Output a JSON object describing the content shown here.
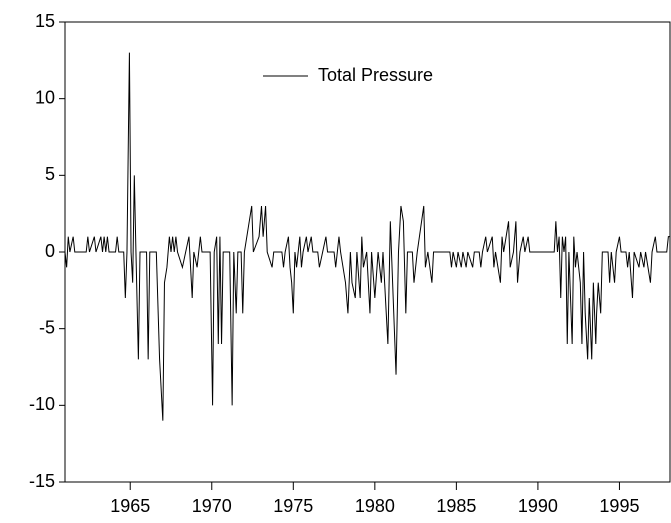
{
  "chart_data": {
    "type": "line",
    "x": [
      1961.0,
      1961.1,
      1961.2,
      1961.3,
      1961.5,
      1961.6,
      1962.3,
      1962.4,
      1962.5,
      1962.8,
      1962.9,
      1963.2,
      1963.3,
      1963.4,
      1963.5,
      1963.6,
      1963.7,
      1964.1,
      1964.2,
      1964.3,
      1964.6,
      1964.7,
      1964.8,
      1964.95,
      1965.05,
      1965.15,
      1965.25,
      1965.35,
      1965.5,
      1965.6,
      1966.0,
      1966.1,
      1966.2,
      1966.6,
      1966.8,
      1967.0,
      1967.1,
      1967.25,
      1967.4,
      1967.5,
      1967.6,
      1967.7,
      1967.8,
      1967.9,
      1968.2,
      1968.4,
      1968.6,
      1968.8,
      1968.9,
      1969.1,
      1969.3,
      1969.4,
      1969.9,
      1970.05,
      1970.15,
      1970.3,
      1970.4,
      1970.5,
      1970.6,
      1970.7,
      1971.1,
      1971.25,
      1971.35,
      1971.5,
      1971.6,
      1971.8,
      1971.9,
      1972.0,
      1972.3,
      1972.45,
      1972.55,
      1972.9,
      1973.05,
      1973.15,
      1973.3,
      1973.4,
      1973.7,
      1973.8,
      1974.3,
      1974.4,
      1974.5,
      1974.7,
      1974.8,
      1974.9,
      1975.0,
      1975.1,
      1975.2,
      1975.4,
      1975.5,
      1975.6,
      1975.8,
      1975.9,
      1976.1,
      1976.2,
      1976.5,
      1976.6,
      1976.8,
      1977.0,
      1977.1,
      1977.5,
      1977.6,
      1977.8,
      1977.9,
      1978.2,
      1978.35,
      1978.5,
      1978.6,
      1978.8,
      1978.9,
      1979.1,
      1979.2,
      1979.3,
      1979.5,
      1979.7,
      1979.8,
      1980.0,
      1980.2,
      1980.4,
      1980.5,
      1980.8,
      1980.95,
      1981.3,
      1981.45,
      1981.6,
      1981.75,
      1981.9,
      1982.0,
      1982.3,
      1982.4,
      1982.6,
      1983.0,
      1983.1,
      1983.25,
      1983.5,
      1983.6,
      1984.6,
      1984.7,
      1984.8,
      1985.0,
      1985.1,
      1985.3,
      1985.4,
      1985.6,
      1985.7,
      1986.0,
      1986.1,
      1986.4,
      1986.5,
      1986.6,
      1986.8,
      1986.9,
      1987.2,
      1987.3,
      1987.4,
      1987.7,
      1987.8,
      1987.9,
      1988.2,
      1988.3,
      1988.5,
      1988.65,
      1988.75,
      1988.9,
      1989.1,
      1989.2,
      1989.4,
      1989.5,
      1991.0,
      1991.1,
      1991.2,
      1991.3,
      1991.4,
      1991.5,
      1991.6,
      1991.7,
      1991.8,
      1991.9,
      1992.1,
      1992.2,
      1992.3,
      1992.4,
      1992.6,
      1992.7,
      1992.8,
      1992.9,
      1993.05,
      1993.15,
      1993.3,
      1993.4,
      1993.55,
      1993.6,
      1993.7,
      1993.85,
      1993.95,
      1994.3,
      1994.4,
      1994.5,
      1994.7,
      1994.8,
      1995.0,
      1995.1,
      1995.4,
      1995.5,
      1995.6,
      1995.8,
      1995.9,
      1996.2,
      1996.3,
      1996.5,
      1996.6,
      1996.9,
      1997.0,
      1997.2,
      1997.3,
      1997.9,
      1998.0,
      1998.1
    ],
    "series": [
      {
        "name": "Total Pressure",
        "color": "#000000",
        "values": [
          0,
          -1,
          1,
          0,
          1,
          0,
          0,
          1,
          0,
          1,
          0,
          1,
          0,
          1,
          0,
          1,
          0,
          0,
          1,
          0,
          0,
          -3,
          0,
          13,
          0,
          -2,
          5,
          0,
          -7,
          0,
          0,
          -7,
          0,
          0,
          -7,
          -11,
          -2,
          -1,
          1,
          0,
          1,
          0,
          1,
          0,
          -1,
          0,
          1,
          -3,
          0,
          -1,
          1,
          0,
          0,
          -10,
          0,
          1,
          -6,
          1,
          -6,
          0,
          0,
          -10,
          0,
          -4,
          0,
          0,
          -4,
          0,
          2,
          3,
          0,
          1,
          3,
          1,
          3,
          0,
          -1,
          0,
          0,
          -1,
          0,
          1,
          -1,
          -2,
          -4,
          0,
          -1,
          1,
          -1,
          0,
          1,
          0,
          1,
          0,
          0,
          -1,
          0,
          1,
          0,
          0,
          -1,
          1,
          0,
          -2,
          -4,
          0,
          -2,
          -3,
          0,
          -3,
          1,
          -1,
          0,
          -4,
          0,
          -3,
          0,
          -2,
          0,
          -6,
          2,
          -8,
          0,
          3,
          2,
          -4,
          0,
          0,
          -2,
          0,
          3,
          -1,
          0,
          -2,
          0,
          0,
          -1,
          0,
          -1,
          0,
          -1,
          0,
          -1,
          0,
          -1,
          0,
          0,
          -1,
          0,
          1,
          0,
          1,
          -1,
          0,
          -2,
          1,
          0,
          2,
          -1,
          0,
          2,
          -2,
          0,
          1,
          0,
          1,
          0,
          0,
          2,
          0,
          1,
          -3,
          1,
          0,
          1,
          -6,
          0,
          -6,
          1,
          -1,
          0,
          -2,
          -6,
          0,
          -4,
          -7,
          -3,
          -7,
          -2,
          -6,
          -4,
          -2,
          -4,
          0,
          0,
          -2,
          0,
          -2,
          0,
          1,
          0,
          0,
          -1,
          0,
          -3,
          0,
          -1,
          0,
          -1,
          0,
          -2,
          0,
          1,
          0,
          0,
          1,
          1
        ]
      }
    ],
    "xlim": [
      1961.0,
      1998.1
    ],
    "xticks": [
      1965,
      1970,
      1975,
      1980,
      1985,
      1990,
      1995
    ],
    "ylim": [
      -15,
      15
    ],
    "yticks": [
      -15,
      -10,
      -5,
      0,
      5,
      10,
      15
    ]
  }
}
